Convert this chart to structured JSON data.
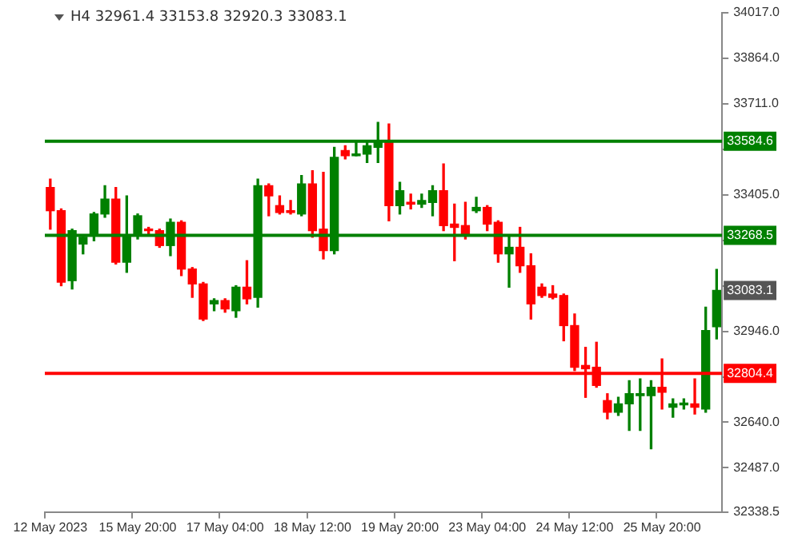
{
  "chart_data": {
    "type": "candlestick",
    "title": "H4  32961.4 33153.8 32920.3 33083.1",
    "categories": [
      "12 May 2023",
      null,
      null,
      null,
      null,
      null,
      null,
      null,
      "15 May 20:00",
      null,
      null,
      null,
      null,
      null,
      null,
      null,
      "17 May 04:00",
      null,
      null,
      null,
      null,
      null,
      null,
      null,
      "18 May 12:00",
      null,
      null,
      null,
      null,
      null,
      null,
      null,
      "19 May 20:00",
      null,
      null,
      null,
      null,
      null,
      null,
      null,
      "23 May 04:00",
      null,
      null,
      null,
      null,
      null,
      null,
      null,
      "24 May 12:00",
      null,
      null,
      null,
      null,
      null,
      null,
      null,
      "25 May 20:00",
      null,
      null,
      null,
      null,
      null
    ],
    "ohlc": [
      [
        33429,
        33457,
        33289,
        33351
      ],
      [
        33351,
        33357,
        33099,
        33111
      ],
      [
        33116,
        33289,
        33088,
        33284
      ],
      [
        33239,
        33262,
        33206,
        33262
      ],
      [
        33267,
        33345,
        33250,
        33340
      ],
      [
        33340,
        33435,
        33329,
        33390
      ],
      [
        33390,
        33429,
        33172,
        33178
      ],
      [
        33178,
        33401,
        33144,
        33267
      ],
      [
        33273,
        33340,
        33256,
        33334
      ],
      [
        33289,
        33295,
        33273,
        33284
      ],
      [
        33284,
        33289,
        33228,
        33234
      ],
      [
        33234,
        33323,
        33200,
        33312
      ],
      [
        33312,
        33317,
        33133,
        33155
      ],
      [
        33155,
        33160,
        33060,
        33105
      ],
      [
        33105,
        33110,
        32982,
        32987
      ],
      [
        33038,
        33055,
        33015,
        33049
      ],
      [
        33049,
        33055,
        33010,
        33021
      ],
      [
        33015,
        33099,
        32993,
        33094
      ],
      [
        33094,
        33183,
        33038,
        33055
      ],
      [
        33060,
        33457,
        33027,
        33435
      ],
      [
        33435,
        33441,
        33334,
        33401
      ],
      [
        33368,
        33401,
        33340,
        33345
      ],
      [
        33351,
        33385,
        33340,
        33345
      ],
      [
        33340,
        33469,
        33334,
        33441
      ],
      [
        33441,
        33485,
        33262,
        33284
      ],
      [
        33289,
        33480,
        33189,
        33217
      ],
      [
        33217,
        33564,
        33206,
        33530
      ],
      [
        33553,
        33569,
        33525,
        33536
      ],
      [
        33536,
        33586,
        33536,
        33541
      ],
      [
        33541,
        33586,
        33513,
        33569
      ],
      [
        33564,
        33648,
        33513,
        33586
      ],
      [
        33586,
        33642,
        33317,
        33368
      ],
      [
        33368,
        33446,
        33340,
        33418
      ],
      [
        33379,
        33407,
        33357,
        33373
      ],
      [
        33373,
        33407,
        33362,
        33385
      ],
      [
        33379,
        33435,
        33334,
        33418
      ],
      [
        33418,
        33508,
        33284,
        33301
      ],
      [
        33306,
        33373,
        33183,
        33295
      ],
      [
        33301,
        33379,
        33256,
        33273
      ],
      [
        33351,
        33396,
        33345,
        33362
      ],
      [
        33362,
        33368,
        33284,
        33306
      ],
      [
        33312,
        33317,
        33178,
        33206
      ],
      [
        33206,
        33267,
        33094,
        33228
      ],
      [
        33228,
        33295,
        33144,
        33166
      ],
      [
        33166,
        33206,
        32987,
        33038
      ],
      [
        33094,
        33105,
        33060,
        33066
      ],
      [
        33071,
        33099,
        33055,
        33060
      ],
      [
        33066,
        33071,
        32914,
        32965
      ],
      [
        32965,
        33004,
        32814,
        32825
      ],
      [
        32831,
        32892,
        32724,
        32820
      ],
      [
        32825,
        32909,
        32758,
        32764
      ],
      [
        32713,
        32736,
        32652,
        32674
      ],
      [
        32674,
        32724,
        32663,
        32702
      ],
      [
        32702,
        32780,
        32613,
        32736
      ],
      [
        32730,
        32786,
        32613,
        32736
      ],
      [
        32730,
        32780,
        32551,
        32758
      ],
      [
        32758,
        32853,
        32685,
        32741
      ],
      [
        32691,
        32719,
        32657,
        32702
      ],
      [
        32699,
        32719,
        32685,
        32702
      ],
      [
        32702,
        32786,
        32668,
        32691
      ],
      [
        32685,
        33027,
        32674,
        32948
      ],
      [
        32961.4,
        33153.8,
        32920.3,
        33083.1
      ]
    ],
    "colors": [
      "#ff0000",
      "#ff0000",
      "#008000",
      "#008000",
      "#008000",
      "#008000",
      "#ff0000",
      "#008000",
      "#008000",
      "#ff0000",
      "#ff0000",
      "#008000",
      "#ff0000",
      "#ff0000",
      "#ff0000",
      "#008000",
      "#ff0000",
      "#008000",
      "#ff0000",
      "#008000",
      "#ff0000",
      "#ff0000",
      "#ff0000",
      "#008000",
      "#ff0000",
      "#ff0000",
      "#008000",
      "#ff0000",
      "#008000",
      "#008000",
      "#008000",
      "#ff0000",
      "#008000",
      "#ff0000",
      "#008000",
      "#008000",
      "#ff0000",
      "#ff0000",
      "#ff0000",
      "#008000",
      "#ff0000",
      "#ff0000",
      "#008000",
      "#ff0000",
      "#ff0000",
      "#ff0000",
      "#ff0000",
      "#ff0000",
      "#ff0000",
      "#ff0000",
      "#ff0000",
      "#ff0000",
      "#008000",
      "#008000",
      "#008000",
      "#008000",
      "#ff0000",
      "#008000",
      "#008000",
      "#ff0000",
      "#008000",
      "#008000"
    ],
    "ylim": [
      32338.5,
      34017.0
    ],
    "yticks": [
      {
        "value": 32338.5,
        "label": "32338.5"
      },
      {
        "value": 32487,
        "label": "32487.0"
      },
      {
        "value": 32640,
        "label": "32640.0"
      },
      {
        "value": 32793,
        "label": null
      },
      {
        "value": 32946,
        "label": "32946.0"
      },
      {
        "value": 33099,
        "label": null
      },
      {
        "value": 33252,
        "label": null
      },
      {
        "value": 33405,
        "label": "33405.0"
      },
      {
        "value": 33558,
        "label": null
      },
      {
        "value": 33711,
        "label": "33711.0"
      },
      {
        "value": 33864,
        "label": "33864.0"
      },
      {
        "value": 34017,
        "label": "34017.0"
      }
    ],
    "ref_lines": [
      {
        "axis": "y",
        "value": 33584.6,
        "label": "33584.6",
        "color": "#008000"
      },
      {
        "axis": "y",
        "value": 33268.5,
        "label": "33268.5",
        "color": "#008000"
      },
      {
        "axis": "y",
        "value": 32804.4,
        "label": "32804.4",
        "color": "#ff0000"
      }
    ],
    "annotations": [
      "33083.1"
    ],
    "grid": false,
    "legend": false
  }
}
